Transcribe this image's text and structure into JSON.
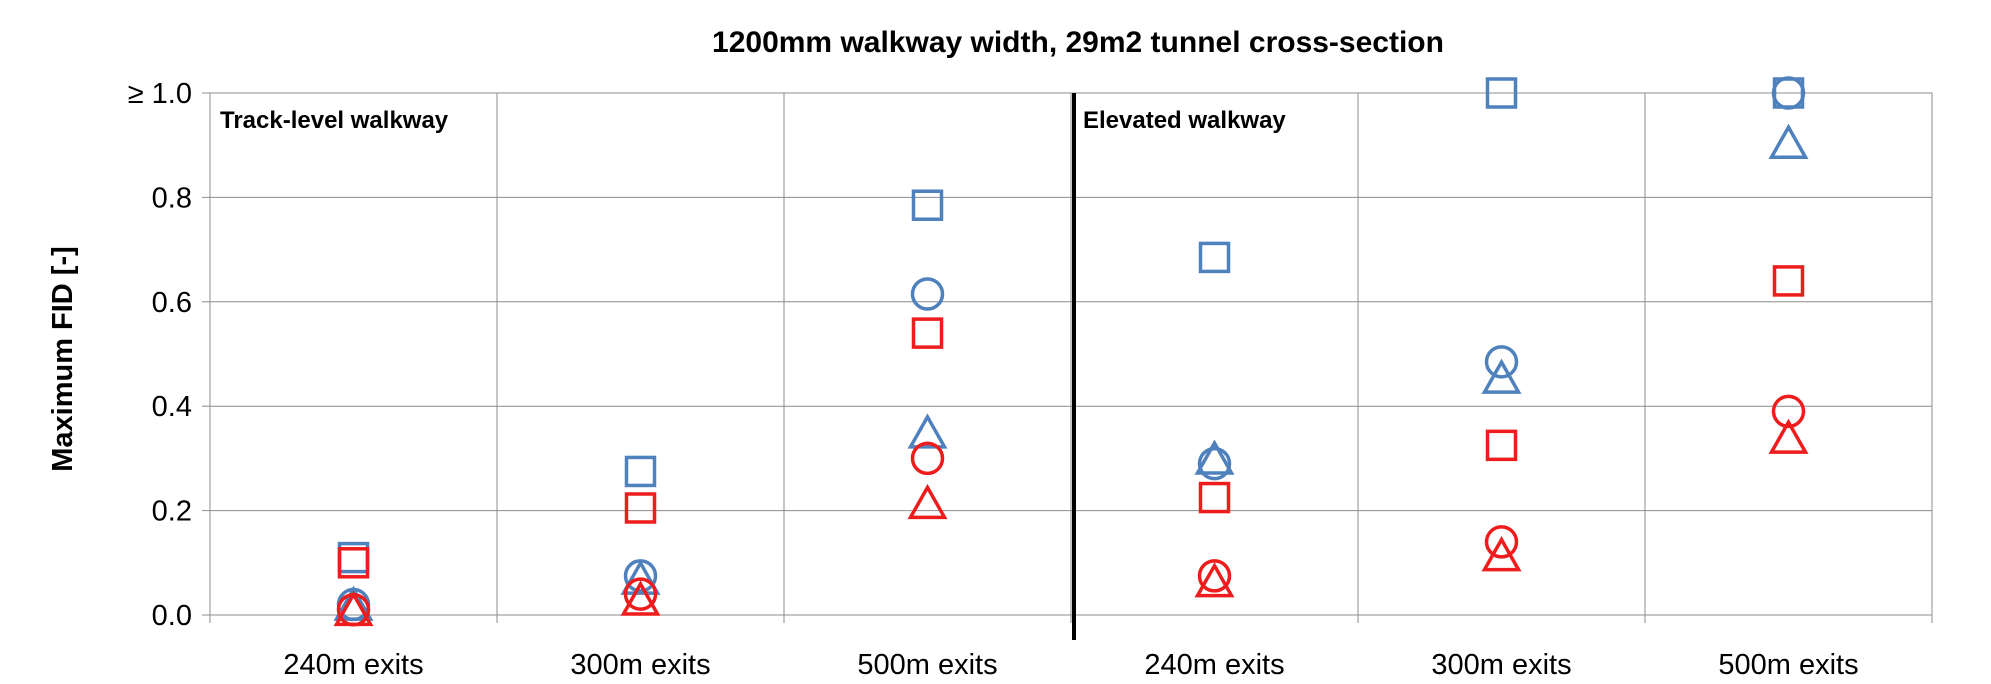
{
  "chart_data": {
    "type": "scatter",
    "title": "1200mm walkway width, 29m2 tunnel cross-section",
    "ylabel": "Maximum FID [-]",
    "xlabel": "",
    "categories": [
      "240m exits",
      "300m exits",
      "500m exits",
      "240m exits",
      "300m exits",
      "500m exits"
    ],
    "ylim": [
      0,
      1.0
    ],
    "y_ticks": [
      {
        "value": 0.0,
        "label": "0.0"
      },
      {
        "value": 0.2,
        "label": "0.2"
      },
      {
        "value": 0.4,
        "label": "0.4"
      },
      {
        "value": 0.6,
        "label": "0.6"
      },
      {
        "value": 0.8,
        "label": "0.8"
      },
      {
        "value": 1.0,
        "label": "≥ 1.0"
      }
    ],
    "grid": true,
    "legend": "none",
    "regions": [
      {
        "label": "Track-level walkway",
        "categories": [
          0,
          1,
          2
        ]
      },
      {
        "label": "Elevated walkway",
        "categories": [
          3,
          4,
          5
        ]
      }
    ],
    "colors": {
      "blue": "#4f81bd",
      "red": "#ee1c1c"
    },
    "series": [
      {
        "marker": "square",
        "color": "blue",
        "values": [
          0.11,
          0.275,
          0.785,
          0.685,
          1.0,
          1.0
        ]
      },
      {
        "marker": "circle",
        "color": "blue",
        "values": [
          0.02,
          0.075,
          0.615,
          0.29,
          0.485,
          1.0
        ]
      },
      {
        "marker": "triangle",
        "color": "blue",
        "values": [
          0.015,
          0.065,
          0.345,
          0.295,
          0.45,
          0.9
        ]
      },
      {
        "marker": "square",
        "color": "red",
        "values": [
          0.1,
          0.205,
          0.54,
          0.225,
          0.325,
          0.64
        ]
      },
      {
        "marker": "circle",
        "color": "red",
        "values": [
          0.01,
          0.04,
          0.3,
          0.075,
          0.14,
          0.39
        ]
      },
      {
        "marker": "triangle",
        "color": "red",
        "values": [
          0.005,
          0.025,
          0.21,
          0.06,
          0.11,
          0.335
        ]
      }
    ]
  }
}
